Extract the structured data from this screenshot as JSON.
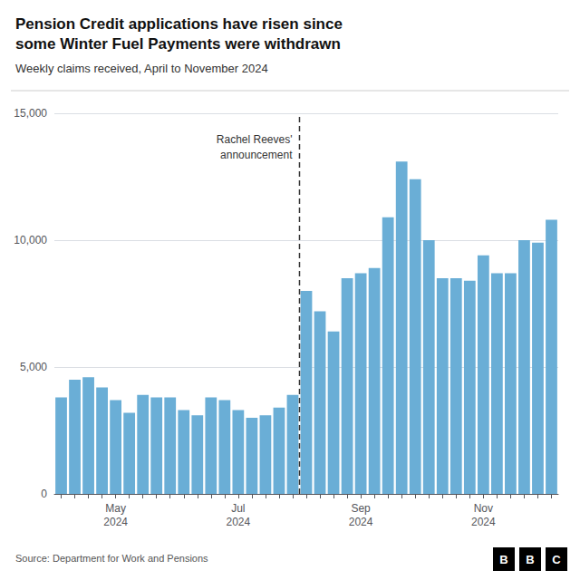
{
  "chart_data": {
    "type": "bar",
    "title": "Pension Credit applications have risen since\nsome Winter Fuel Payments were withdrawn",
    "subtitle": "Weekly claims received, April to November 2024",
    "source": "Source: Department for Work and Pensions",
    "logo": "BBC",
    "annotation": {
      "text": "Rachel Reeves'\nannouncement",
      "between": [
        17,
        18
      ]
    },
    "categories": [
      null,
      null,
      null,
      null,
      "May\n2024",
      null,
      null,
      null,
      null,
      null,
      null,
      null,
      null,
      "Jul\n2024",
      null,
      null,
      null,
      null,
      null,
      null,
      null,
      null,
      "Sep\n2024",
      null,
      null,
      null,
      null,
      null,
      null,
      null,
      null,
      "Nov\n2024",
      null,
      null,
      null,
      null,
      null
    ],
    "values": [
      3800,
      4500,
      4600,
      4200,
      3700,
      3200,
      3900,
      3800,
      3800,
      3300,
      3100,
      3800,
      3700,
      3300,
      3000,
      3100,
      3400,
      3900,
      8000,
      7200,
      6400,
      8500,
      8700,
      8900,
      10900,
      13100,
      12400,
      10000,
      8500,
      8500,
      8400,
      9400,
      8700,
      8700,
      10000,
      9900,
      10800
    ],
    "color": "#6aaed6",
    "ylim": [
      0,
      15000
    ],
    "yticks": [
      0,
      {
        "value": 5000,
        "label": "5,000"
      },
      {
        "value": 10000,
        "label": "10,000"
      },
      {
        "value": 15000,
        "label": "15,000"
      }
    ],
    "grid": true
  }
}
